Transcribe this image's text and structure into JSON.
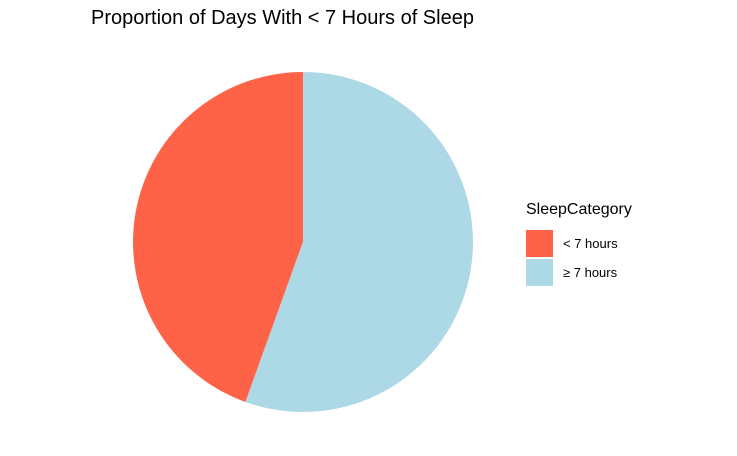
{
  "chart_data": {
    "type": "pie",
    "title": "Proportion of Days With < 7 Hours of Sleep",
    "legend_title": "SleepCategory",
    "legend_position": "right",
    "slices": [
      {
        "label": "< 7 hours",
        "value": 0.445,
        "color": "#FF6347"
      },
      {
        "label": "≥ 7 hours",
        "value": 0.555,
        "color": "#ADD8E6"
      }
    ]
  }
}
